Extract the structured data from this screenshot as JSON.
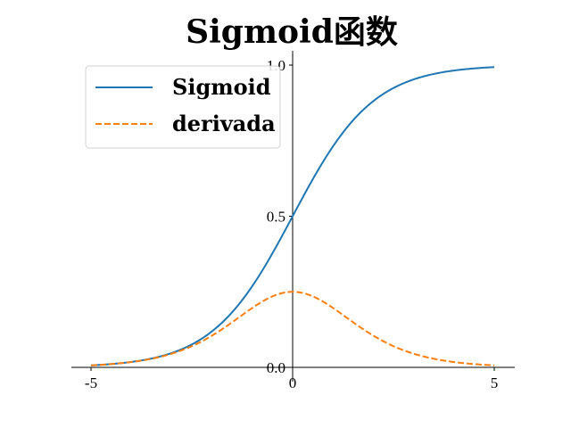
{
  "chart_data": {
    "type": "line",
    "title": "Sigmoid函数",
    "xlabel": "",
    "ylabel": "",
    "xlim": [
      -5,
      5
    ],
    "ylim": [
      0,
      1
    ],
    "x_ticks": [
      {
        "value": -5,
        "label": "-5"
      },
      {
        "value": 0,
        "label": "0"
      },
      {
        "value": 5,
        "label": "5"
      }
    ],
    "y_ticks": [
      {
        "value": 0,
        "label": "0.0"
      },
      {
        "value": 0.5,
        "label": "0.5"
      },
      {
        "value": 1,
        "label": "1.0"
      }
    ],
    "x": [
      -5,
      -4,
      -3,
      -2,
      -1,
      0,
      1,
      2,
      3,
      4,
      5
    ],
    "series": [
      {
        "name": "Sigmoid",
        "color": "#1f77b4",
        "style": "solid",
        "values": [
          0.0067,
          0.018,
          0.047,
          0.119,
          0.269,
          0.5,
          0.731,
          0.881,
          0.953,
          0.982,
          0.993
        ]
      },
      {
        "name": "derivada",
        "color": "#ff7f0e",
        "style": "dashed",
        "values": [
          0.0066,
          0.0177,
          0.0452,
          0.105,
          0.197,
          0.25,
          0.197,
          0.105,
          0.0452,
          0.0177,
          0.0066
        ]
      }
    ],
    "grid": false,
    "legend_position": "top-left",
    "spines": "centered-axes"
  }
}
